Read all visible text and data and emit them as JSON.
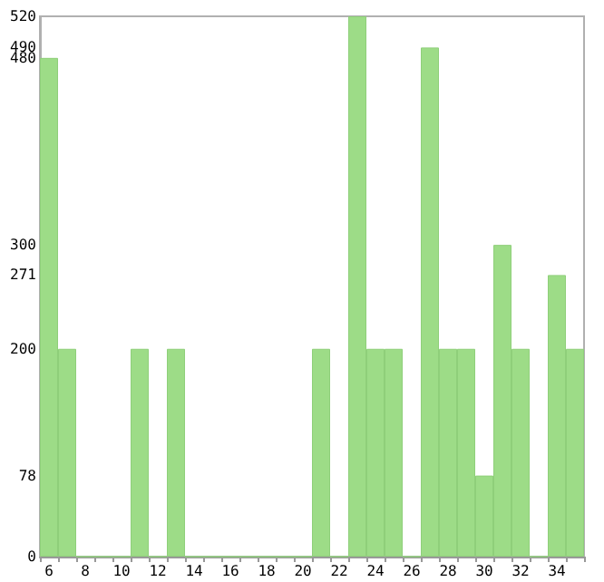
{
  "chart_data": {
    "type": "bar",
    "categories": [
      "6",
      null,
      "8",
      null,
      "10",
      null,
      "12",
      null,
      "14",
      null,
      "16",
      null,
      "18",
      null,
      "20",
      null,
      "22",
      null,
      "24",
      null,
      "26",
      null,
      "28",
      null,
      "30",
      null,
      "32",
      null,
      "34",
      null
    ],
    "values": [
      480,
      200,
      0,
      0,
      0,
      200,
      0,
      200,
      0,
      0,
      0,
      0,
      0,
      0,
      0,
      200,
      0,
      520,
      200,
      200,
      0,
      490,
      200,
      200,
      78,
      300,
      200,
      0,
      271,
      200
    ],
    "color": "#9ddc87",
    "ylim": [
      0,
      520
    ],
    "yticks": [
      0,
      78,
      200,
      271,
      300,
      480,
      490,
      520
    ],
    "grid": false
  }
}
